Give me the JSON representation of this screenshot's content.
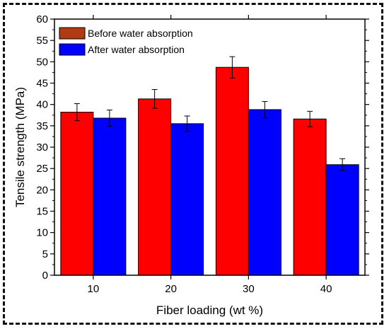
{
  "chart_data": {
    "type": "bar",
    "categories": [
      "10",
      "20",
      "30",
      "40"
    ],
    "series": [
      {
        "name": "Before water absorption",
        "values": [
          38.2,
          41.3,
          48.7,
          36.6
        ],
        "errors": [
          2.0,
          2.2,
          2.5,
          1.8
        ],
        "color": "#ff0000",
        "legend_color": "#b23a12"
      },
      {
        "name": "After water absorption",
        "values": [
          36.8,
          35.5,
          38.8,
          25.9
        ],
        "errors": [
          1.9,
          1.8,
          1.9,
          1.4
        ],
        "color": "#0000ff",
        "legend_color": "#0000ff"
      }
    ],
    "xlabel": "Fiber loading (wt %)",
    "ylabel": "Tensile strength (MPa)",
    "ylim": [
      0,
      60
    ],
    "yticks": [
      0,
      5,
      10,
      15,
      20,
      25,
      30,
      35,
      40,
      45,
      50,
      55,
      60
    ],
    "legend_position": "top-left",
    "grid": false
  }
}
